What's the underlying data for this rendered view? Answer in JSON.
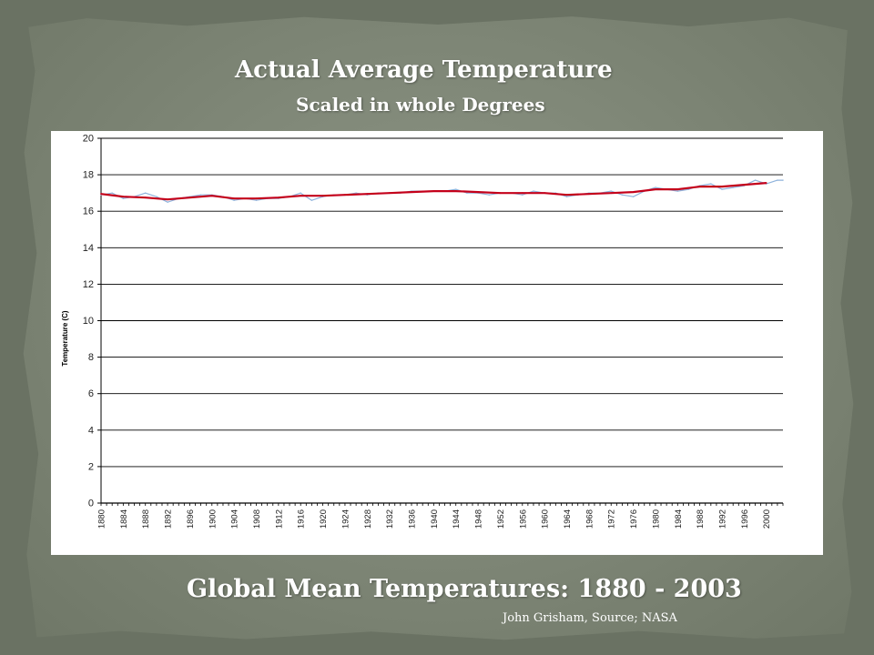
{
  "slide": {
    "title": "Actual Average Temperature",
    "subtitle": "Scaled in whole Degrees",
    "caption": "Global Mean Temperatures: 1880 - 2003",
    "credit": "John Grisham, Source; NASA",
    "colors": {
      "background": "#7d8575",
      "text": "#ffffff",
      "annual_series": "#8fb3dc",
      "smoothed_series": "#c4001a",
      "gridline": "#000000"
    }
  },
  "chart_data": {
    "type": "line",
    "title": "",
    "xlabel": "",
    "ylabel": "Temperature (C)",
    "xlim": [
      1880,
      2003
    ],
    "ylim": [
      0,
      20
    ],
    "y_ticks": [
      0,
      2,
      4,
      6,
      8,
      10,
      12,
      14,
      16,
      18,
      20
    ],
    "x_tick_labels": [
      "1880",
      "1884",
      "1888",
      "1892",
      "1896",
      "1900",
      "1904",
      "1908",
      "1912",
      "1916",
      "1920",
      "1924",
      "1928",
      "1932",
      "1936",
      "1940",
      "1944",
      "1948",
      "1952",
      "1956",
      "1960",
      "1964",
      "1968",
      "1972",
      "1976",
      "1980",
      "1984",
      "1988",
      "1992",
      "1996",
      "2000"
    ],
    "grid": "horizontal",
    "legend": "none",
    "series": [
      {
        "style": "annual",
        "x": [
          1880,
          1882,
          1884,
          1886,
          1888,
          1890,
          1892,
          1894,
          1896,
          1898,
          1900,
          1902,
          1904,
          1906,
          1908,
          1910,
          1912,
          1914,
          1916,
          1918,
          1920,
          1922,
          1924,
          1926,
          1928,
          1930,
          1932,
          1934,
          1936,
          1938,
          1940,
          1942,
          1944,
          1946,
          1948,
          1950,
          1952,
          1954,
          1956,
          1958,
          1960,
          1962,
          1964,
          1966,
          1968,
          1970,
          1972,
          1974,
          1976,
          1978,
          1980,
          1982,
          1984,
          1986,
          1988,
          1990,
          1992,
          1994,
          1996,
          1998,
          2000,
          2002,
          2003
        ],
        "values": [
          16.9,
          17.0,
          16.7,
          16.8,
          17.0,
          16.8,
          16.5,
          16.7,
          16.8,
          16.9,
          16.9,
          16.8,
          16.6,
          16.7,
          16.6,
          16.7,
          16.7,
          16.8,
          17.0,
          16.6,
          16.8,
          16.9,
          16.9,
          17.0,
          16.9,
          17.0,
          17.0,
          17.0,
          17.1,
          17.1,
          17.1,
          17.1,
          17.2,
          17.0,
          17.0,
          16.9,
          17.0,
          17.0,
          16.9,
          17.1,
          17.0,
          17.0,
          16.8,
          16.9,
          17.0,
          17.0,
          17.1,
          16.9,
          16.8,
          17.1,
          17.3,
          17.2,
          17.1,
          17.2,
          17.4,
          17.5,
          17.2,
          17.3,
          17.4,
          17.7,
          17.5,
          17.7,
          17.7
        ]
      },
      {
        "style": "smoothed",
        "x": [
          1880,
          1884,
          1888,
          1892,
          1896,
          1900,
          1904,
          1908,
          1912,
          1916,
          1920,
          1924,
          1928,
          1932,
          1936,
          1940,
          1944,
          1948,
          1952,
          1956,
          1960,
          1964,
          1968,
          1972,
          1976,
          1980,
          1984,
          1988,
          1992,
          1996,
          2000
        ],
        "values": [
          16.95,
          16.8,
          16.75,
          16.65,
          16.75,
          16.85,
          16.7,
          16.7,
          16.75,
          16.85,
          16.85,
          16.9,
          16.95,
          17.0,
          17.05,
          17.1,
          17.1,
          17.05,
          17.0,
          17.0,
          17.0,
          16.9,
          16.95,
          17.0,
          17.05,
          17.2,
          17.2,
          17.35,
          17.35,
          17.45,
          17.55
        ]
      }
    ]
  }
}
